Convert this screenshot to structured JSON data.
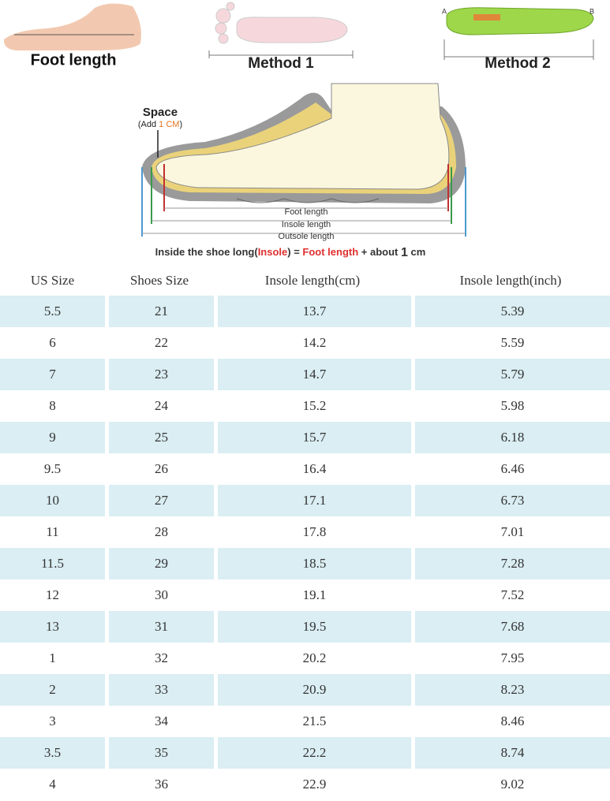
{
  "illustrations": {
    "foot_length": "Foot length",
    "method_1": "Method 1",
    "method_2": "Method 2",
    "point_a": "A",
    "point_b": "B"
  },
  "diagram": {
    "space": "Space",
    "space_note": [
      "(Add ",
      "1 CM",
      ")"
    ],
    "foot_length": "Foot length",
    "insole_length": "Insole length",
    "outsole_length": "Outsole length",
    "caption": [
      "Inside the shoe long(",
      "Insole",
      ") = ",
      "Foot length",
      " + about ",
      "1",
      " cm"
    ]
  },
  "table": {
    "header": [
      "US Size",
      "Shoes Size",
      "Insole length(cm)",
      "Insole length(inch)"
    ],
    "rows": [
      [
        "5.5",
        "21",
        "13.7",
        "5.39"
      ],
      [
        "6",
        "22",
        "14.2",
        "5.59"
      ],
      [
        "7",
        "23",
        "14.7",
        "5.79"
      ],
      [
        "8",
        "24",
        "15.2",
        "5.98"
      ],
      [
        "9",
        "25",
        "15.7",
        "6.18"
      ],
      [
        "9.5",
        "26",
        "16.4",
        "6.46"
      ],
      [
        "10",
        "27",
        "17.1",
        "6.73"
      ],
      [
        "11",
        "28",
        "17.8",
        "7.01"
      ],
      [
        "11.5",
        "29",
        "18.5",
        "7.28"
      ],
      [
        "12",
        "30",
        "19.1",
        "7.52"
      ],
      [
        "13",
        "31",
        "19.5",
        "7.68"
      ],
      [
        "1",
        "32",
        "20.2",
        "7.95"
      ],
      [
        "2",
        "33",
        "20.9",
        "8.23"
      ],
      [
        "3",
        "34",
        "21.5",
        "8.46"
      ],
      [
        "3.5",
        "35",
        "22.2",
        "8.74"
      ],
      [
        "4",
        "36",
        "22.9",
        "9.02"
      ]
    ]
  }
}
